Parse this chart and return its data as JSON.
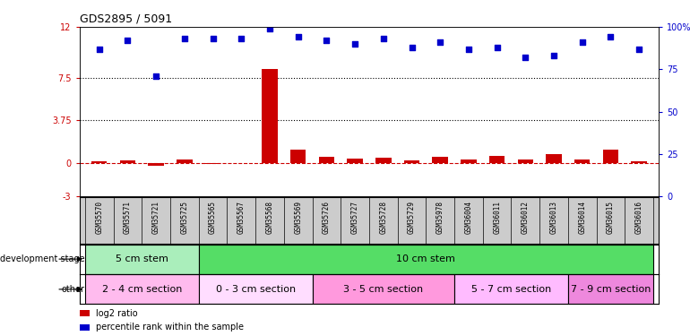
{
  "title": "GDS2895 / 5091",
  "samples": [
    "GSM35570",
    "GSM35571",
    "GSM35721",
    "GSM35725",
    "GSM35565",
    "GSM35567",
    "GSM35568",
    "GSM35569",
    "GSM35726",
    "GSM35727",
    "GSM35728",
    "GSM35729",
    "GSM35978",
    "GSM36004",
    "GSM36011",
    "GSM36012",
    "GSM36013",
    "GSM36014",
    "GSM36015",
    "GSM36016"
  ],
  "log2_ratio": [
    0.12,
    0.18,
    -0.25,
    0.28,
    -0.08,
    0.0,
    8.3,
    1.15,
    0.55,
    0.38,
    0.45,
    0.22,
    0.55,
    0.28,
    0.62,
    0.28,
    0.72,
    0.28,
    1.15,
    0.12
  ],
  "percentile": [
    87,
    92,
    71,
    93,
    93,
    93,
    99,
    94,
    92,
    90,
    93,
    88,
    91,
    87,
    88,
    82,
    83,
    91,
    94,
    87
  ],
  "ylim_left": [
    -3,
    12
  ],
  "ylim_right": [
    0,
    100
  ],
  "yticks_left": [
    -3,
    0,
    3.75,
    7.5,
    12
  ],
  "yticks_right": [
    0,
    25,
    50,
    75,
    100
  ],
  "ytick_labels_left": [
    "-3",
    "0",
    "3.75",
    "7.5",
    "12"
  ],
  "ytick_labels_right": [
    "0",
    "25",
    "50",
    "75",
    "100%"
  ],
  "hlines": [
    7.5,
    3.75
  ],
  "bar_color": "#cc0000",
  "scatter_color": "#0000cc",
  "dashed_line_color": "#cc0000",
  "background_color": "#ffffff",
  "label_bg_color": "#cccccc",
  "dev_stage_groups": [
    {
      "label": "5 cm stem",
      "start": 0,
      "end": 3,
      "color": "#aaeebb"
    },
    {
      "label": "10 cm stem",
      "start": 4,
      "end": 19,
      "color": "#55dd66"
    }
  ],
  "other_groups": [
    {
      "label": "2 - 4 cm section",
      "start": 0,
      "end": 3,
      "color": "#ffbbee"
    },
    {
      "label": "0 - 3 cm section",
      "start": 4,
      "end": 7,
      "color": "#ffddff"
    },
    {
      "label": "3 - 5 cm section",
      "start": 8,
      "end": 12,
      "color": "#ff99dd"
    },
    {
      "label": "5 - 7 cm section",
      "start": 13,
      "end": 16,
      "color": "#ffbbff"
    },
    {
      "label": "7 - 9 cm section",
      "start": 17,
      "end": 19,
      "color": "#ee88dd"
    }
  ],
  "legend_items": [
    {
      "label": "log2 ratio",
      "color": "#cc0000"
    },
    {
      "label": "percentile rank within the sample",
      "color": "#0000cc"
    }
  ],
  "dev_label": "development stage",
  "other_label": "other"
}
